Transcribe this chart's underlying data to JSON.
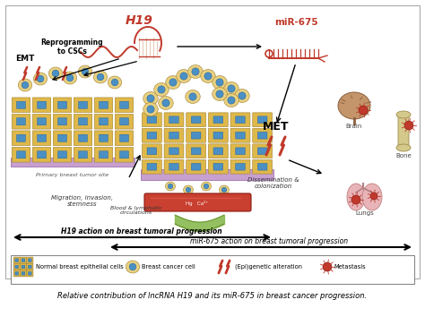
{
  "title": "Relative contribution of lncRNA H19 and its miR-675 in breast cancer progression.",
  "h19_label": "H19",
  "mir675_label": "miR-675",
  "emt_label": "EMT",
  "reprog_label": "Reprogramming\nto CSCs",
  "met_label": "MET",
  "primary_label": "Primary breast tumor site",
  "migration_label": "Migration, invasion,\nstemness",
  "blood_label": "Blood & lymphatic\ncirculations",
  "dissem_label": "Dissemination &\ncolonization",
  "brain_label": "Brain",
  "bone_label": "Bone",
  "lungs_label": "Lungs",
  "h19_arrow_label": "H19 action on breast tumoral progression",
  "mir675_arrow_label": "miR-675 action on breast tumoral progression",
  "legend_items": [
    "Normal breast epithelial cells",
    "Breast cancer cell",
    "(Epi)genetic alteration",
    "Metastasis"
  ],
  "red_color": "#c0392b",
  "cell_yellow": "#deb84a",
  "cell_yellow2": "#e8d080",
  "cell_blue": "#4a90c4",
  "purple_base": "#c8a0d0",
  "brain_color": "#c4956a",
  "lung_pink": "#e8b4b8",
  "bone_color": "#d4c88a"
}
